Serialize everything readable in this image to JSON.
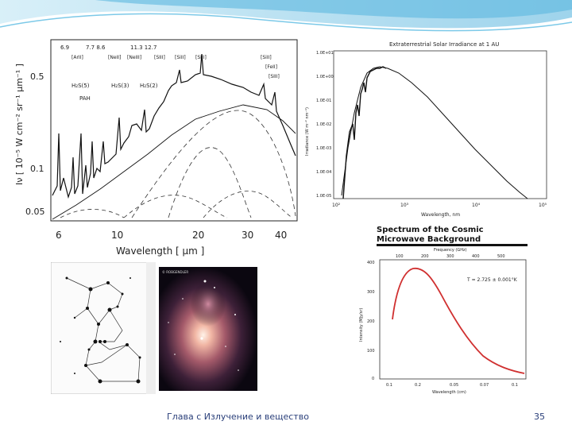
{
  "ir_spectrum": {
    "ylabel": "Iν [ 10⁻⁵ W cm⁻² sr⁻¹ μm⁻¹ ]",
    "xlabel": "Wavelength [ μm ]",
    "yticks": [
      "0.5",
      "0.1",
      "0.05"
    ],
    "xticks": [
      "6",
      "10",
      "20",
      "30",
      "40"
    ],
    "line_labels": [
      "[ArII]",
      "[NeII]",
      "[NeIII]",
      "[SIII]",
      "[SiII]",
      "[SIII]",
      "[SiII]",
      "[FeII]",
      "[SIII]"
    ],
    "line_wavelengths_top": [
      "6.9",
      "7.7 8.6",
      "11.3 12.7"
    ],
    "h2_labels": [
      "H₂S(5)",
      "H₂S(3)",
      "H₂S(2)",
      "PAH"
    ]
  },
  "solar": {
    "title": "Extraterrestrial Solar Irradiance at 1 AU",
    "ylabel": "Irradiance (W m⁻² nm⁻¹)",
    "xlabel": "Wavelength, nm",
    "yticks": [
      "1.0E+01",
      "1.0E+00",
      "1.0E-01",
      "1.0E-02",
      "1.0E-03",
      "1.0E-04",
      "1.0E-05"
    ],
    "xticks": [
      "10²",
      "10³",
      "10⁴",
      "10⁵"
    ]
  },
  "cmb": {
    "title_line1": "Spectrum of the Cosmic",
    "title_line2": "Microwave Background",
    "top_axis_label": "Frequency (GHz)",
    "top_ticks": [
      "100",
      "200",
      "300",
      "400",
      "500"
    ],
    "ylabel": "Intensity (MJy/sr)",
    "yticks": [
      "400",
      "300",
      "200",
      "100",
      "0"
    ],
    "xlabel": "Wavelength (cm)",
    "xticks": [
      "0.1",
      "0.2",
      "0.05",
      "0.07",
      "0.1"
    ],
    "temperature": "T = 2.725 ± 0.001°K"
  },
  "nebula": {
    "credit": "© ROBGENDLER"
  },
  "footer": {
    "title": "Глава с Излучение и вещество",
    "page_number": "35"
  },
  "colors": {
    "wave": "#5bb8e0",
    "cmb_curve": "#d03030",
    "footer_text": "#2a3f7a"
  }
}
